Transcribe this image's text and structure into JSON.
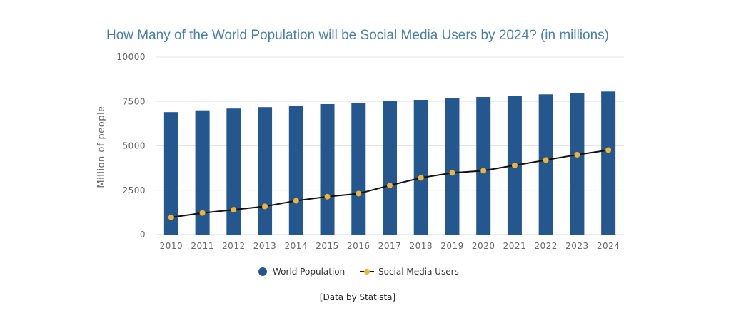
{
  "chart_data": {
    "type": "bar",
    "title": "How Many of the World Population will be Social Media Users by 2024? (in millions)",
    "ylabel": "Million of people",
    "xlabel": "",
    "ylim": [
      0,
      10000
    ],
    "yticks": [
      "0",
      "2500",
      "5000",
      "7500",
      "10000"
    ],
    "ytick_values": [
      0,
      2500,
      5000,
      7500,
      10000
    ],
    "grid": true,
    "legend_position": "bottom-center",
    "categories": [
      "2010",
      "2011",
      "2012",
      "2013",
      "2014",
      "2015",
      "2016",
      "2017",
      "2018",
      "2019",
      "2020",
      "2021",
      "2022",
      "2023",
      "2024"
    ],
    "series": [
      {
        "name": "World Population",
        "type": "bar",
        "color": "#23578e",
        "values": [
          6900,
          7000,
          7100,
          7180,
          7260,
          7350,
          7430,
          7510,
          7590,
          7670,
          7750,
          7820,
          7900,
          7980,
          8060
        ]
      },
      {
        "name": "Social Media Users",
        "type": "line",
        "color": "#111111",
        "marker_color": "#f2b233",
        "values": [
          970,
          1220,
          1400,
          1590,
          1910,
          2140,
          2310,
          2770,
          3200,
          3480,
          3600,
          3900,
          4200,
          4500,
          4760
        ]
      }
    ],
    "source": "[Data by Statista]"
  }
}
